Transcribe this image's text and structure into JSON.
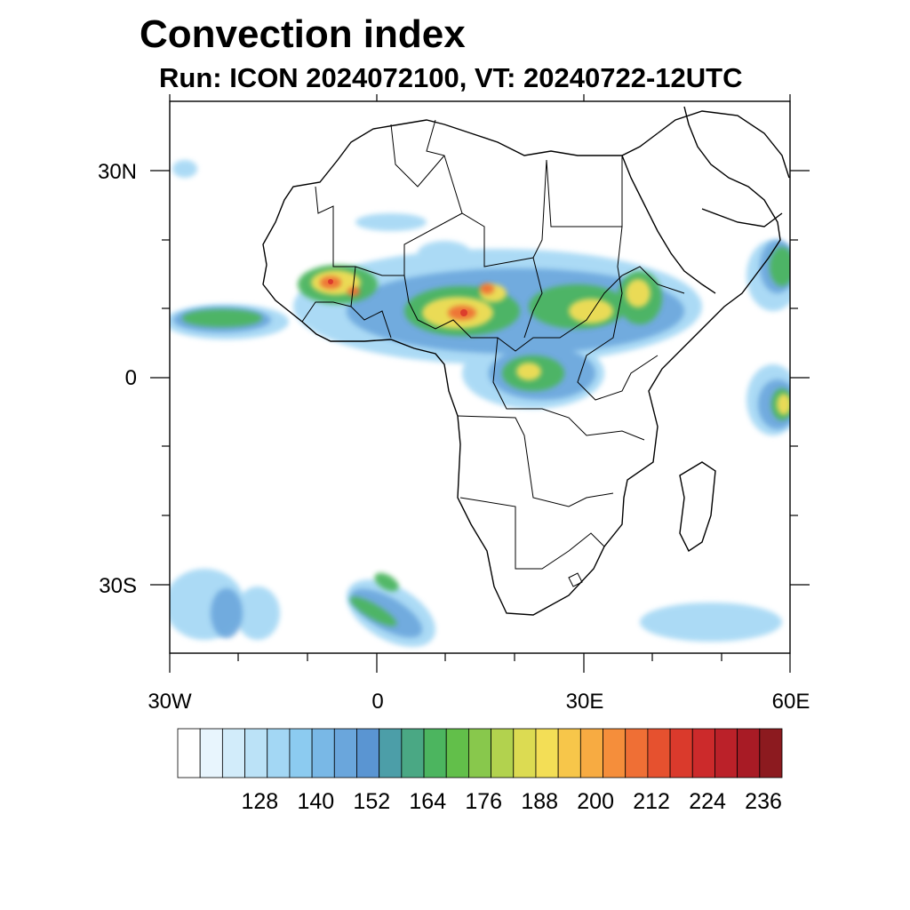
{
  "title": "Convection index",
  "subtitle": "Run: ICON 2024072100,  VT: 20240722-12UTC",
  "map": {
    "extent": {
      "lon": [
        -30,
        60
      ],
      "lat": [
        -40,
        40
      ]
    },
    "y_labels": [
      {
        "text": "30N",
        "lat": 30
      },
      {
        "text": "0",
        "lat": 0
      },
      {
        "text": "30S",
        "lat": -30
      }
    ],
    "x_labels": [
      {
        "text": "30W",
        "lon": -30
      },
      {
        "text": "0",
        "lon": 0
      },
      {
        "text": "30E",
        "lon": 30
      },
      {
        "text": "60E",
        "lon": 60
      }
    ]
  },
  "colorbar": {
    "labels": [
      "128",
      "140",
      "152",
      "164",
      "176",
      "188",
      "200",
      "212",
      "224",
      "236"
    ],
    "colors": [
      "#ffffff",
      "#e8f5fd",
      "#d2ecfa",
      "#bbe2f7",
      "#a3d7f4",
      "#8ccbf0",
      "#79b8e6",
      "#6aa6dc",
      "#5a95d2",
      "#4c9ea8",
      "#4aa884",
      "#4cb55f",
      "#62bf4a",
      "#88c84c",
      "#b2d24e",
      "#dcdb52",
      "#f3de56",
      "#f7c64a",
      "#f7ab42",
      "#f58e3b",
      "#ef6f35",
      "#e6512f",
      "#da3a2c",
      "#cc2a2b",
      "#bb2129",
      "#a81b25",
      "#8c1a1f"
    ]
  }
}
